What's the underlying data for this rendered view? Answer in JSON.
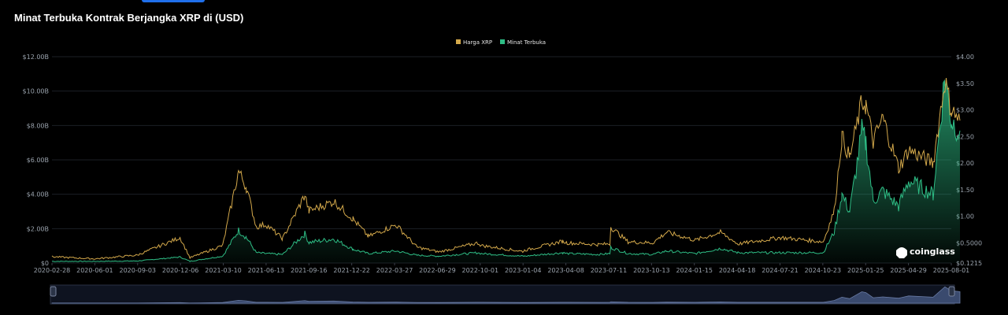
{
  "title": "Minat Terbuka Kontrak Berjangka XRP di (USD)",
  "brand": "coinglass",
  "colors": {
    "background": "#000000",
    "price": "#d4a94b",
    "open_interest": "#2ebd85",
    "navigator": "#3a4a6e"
  },
  "chart_data": {
    "type": "area",
    "title": "Minat Terbuka Kontrak Berjangka XRP di (USD)",
    "legend": [
      "Harga XRP",
      "Minat Terbuka"
    ],
    "legend_position": "top-center",
    "grid": true,
    "x_ticks": [
      "2020-02-28",
      "2020-06-01",
      "2020-09-03",
      "2020-12-06",
      "2021-03-10",
      "2021-06-13",
      "2021-09-16",
      "2021-12-22",
      "2022-03-27",
      "2022-06-29",
      "2022-10-01",
      "2023-01-04",
      "2023-04-08",
      "2023-07-11",
      "2023-10-13",
      "2024-01-15",
      "2024-04-18",
      "2024-07-21",
      "2024-10-23",
      "2025-01-25",
      "2025-04-29",
      "2025-08-01"
    ],
    "y_left_ticks": [
      "$0",
      "$2.00B",
      "$4.00B",
      "$6.00B",
      "$8.00B",
      "$10.00B",
      "$12.00B"
    ],
    "y_left_range": [
      0,
      12
    ],
    "y_left_unit": "billion USD",
    "y_right_ticks": [
      "$0.1215",
      "$0.5000",
      "$1.00",
      "$1.50",
      "$2.00",
      "$2.50",
      "$3.00",
      "$3.50",
      "$4.00"
    ],
    "y_right_range": [
      0.1215,
      4.0
    ],
    "series": [
      {
        "name": "Harga XRP",
        "axis": "right",
        "points": [
          [
            "2020-02-28",
            0.24
          ],
          [
            "2020-06-01",
            0.2
          ],
          [
            "2020-09-03",
            0.27
          ],
          [
            "2020-12-06",
            0.6
          ],
          [
            "2020-12-28",
            0.22
          ],
          [
            "2021-03-10",
            0.45
          ],
          [
            "2021-04-14",
            1.85
          ],
          [
            "2021-05-01",
            1.55
          ],
          [
            "2021-05-23",
            0.8
          ],
          [
            "2021-06-13",
            0.85
          ],
          [
            "2021-07-20",
            0.58
          ],
          [
            "2021-09-07",
            1.4
          ],
          [
            "2021-09-16",
            1.1
          ],
          [
            "2021-11-10",
            1.28
          ],
          [
            "2021-12-22",
            0.95
          ],
          [
            "2022-01-25",
            0.62
          ],
          [
            "2022-03-27",
            0.84
          ],
          [
            "2022-05-12",
            0.42
          ],
          [
            "2022-06-29",
            0.33
          ],
          [
            "2022-09-23",
            0.5
          ],
          [
            "2022-10-01",
            0.45
          ],
          [
            "2022-12-31",
            0.34
          ],
          [
            "2023-01-04",
            0.36
          ],
          [
            "2023-03-29",
            0.53
          ],
          [
            "2023-04-08",
            0.5
          ],
          [
            "2023-06-15",
            0.47
          ],
          [
            "2023-07-11",
            0.48
          ],
          [
            "2023-07-13",
            0.8
          ],
          [
            "2023-08-20",
            0.52
          ],
          [
            "2023-10-13",
            0.5
          ],
          [
            "2023-11-13",
            0.7
          ],
          [
            "2024-01-15",
            0.55
          ],
          [
            "2024-03-11",
            0.7
          ],
          [
            "2024-04-18",
            0.48
          ],
          [
            "2024-07-21",
            0.6
          ],
          [
            "2024-10-23",
            0.52
          ],
          [
            "2024-11-16",
            1.1
          ],
          [
            "2024-12-03",
            2.5
          ],
          [
            "2024-12-20",
            2.1
          ],
          [
            "2025-01-16",
            3.15
          ],
          [
            "2025-01-25",
            3.1
          ],
          [
            "2025-02-10",
            2.4
          ],
          [
            "2025-03-03",
            2.85
          ],
          [
            "2025-04-07",
            1.9
          ],
          [
            "2025-04-29",
            2.25
          ],
          [
            "2025-06-22",
            2.0
          ],
          [
            "2025-07-18",
            3.55
          ],
          [
            "2025-08-01",
            3.0
          ],
          [
            "2025-08-20",
            2.8
          ]
        ]
      },
      {
        "name": "Minat Terbuka",
        "axis": "left",
        "points": [
          [
            "2020-02-28",
            0.1
          ],
          [
            "2020-06-01",
            0.1
          ],
          [
            "2020-09-03",
            0.12
          ],
          [
            "2020-12-06",
            0.35
          ],
          [
            "2020-12-28",
            0.1
          ],
          [
            "2021-03-10",
            0.4
          ],
          [
            "2021-04-14",
            1.9
          ],
          [
            "2021-05-01",
            1.5
          ],
          [
            "2021-05-23",
            0.6
          ],
          [
            "2021-06-13",
            0.55
          ],
          [
            "2021-07-20",
            0.5
          ],
          [
            "2021-09-07",
            1.7
          ],
          [
            "2021-09-16",
            1.2
          ],
          [
            "2021-11-10",
            1.4
          ],
          [
            "2021-12-22",
            0.8
          ],
          [
            "2022-01-25",
            0.55
          ],
          [
            "2022-03-27",
            0.7
          ],
          [
            "2022-05-12",
            0.45
          ],
          [
            "2022-06-29",
            0.4
          ],
          [
            "2022-09-23",
            0.6
          ],
          [
            "2022-10-01",
            0.55
          ],
          [
            "2022-12-31",
            0.4
          ],
          [
            "2023-01-04",
            0.4
          ],
          [
            "2023-03-29",
            0.6
          ],
          [
            "2023-04-08",
            0.55
          ],
          [
            "2023-06-15",
            0.5
          ],
          [
            "2023-07-11",
            0.55
          ],
          [
            "2023-07-13",
            0.9
          ],
          [
            "2023-08-20",
            0.55
          ],
          [
            "2023-10-13",
            0.5
          ],
          [
            "2023-11-13",
            0.7
          ],
          [
            "2024-01-15",
            0.55
          ],
          [
            "2024-03-11",
            0.85
          ],
          [
            "2024-04-18",
            0.6
          ],
          [
            "2024-07-21",
            0.6
          ],
          [
            "2024-10-23",
            0.6
          ],
          [
            "2024-11-16",
            1.8
          ],
          [
            "2024-12-03",
            4.0
          ],
          [
            "2024-12-20",
            3.0
          ],
          [
            "2025-01-16",
            7.6
          ],
          [
            "2025-01-25",
            7.0
          ],
          [
            "2025-02-10",
            3.6
          ],
          [
            "2025-03-03",
            4.2
          ],
          [
            "2025-04-07",
            3.3
          ],
          [
            "2025-04-29",
            4.8
          ],
          [
            "2025-06-22",
            4.0
          ],
          [
            "2025-07-18",
            10.9
          ],
          [
            "2025-08-01",
            8.3
          ],
          [
            "2025-08-20",
            7.7
          ]
        ]
      }
    ]
  }
}
